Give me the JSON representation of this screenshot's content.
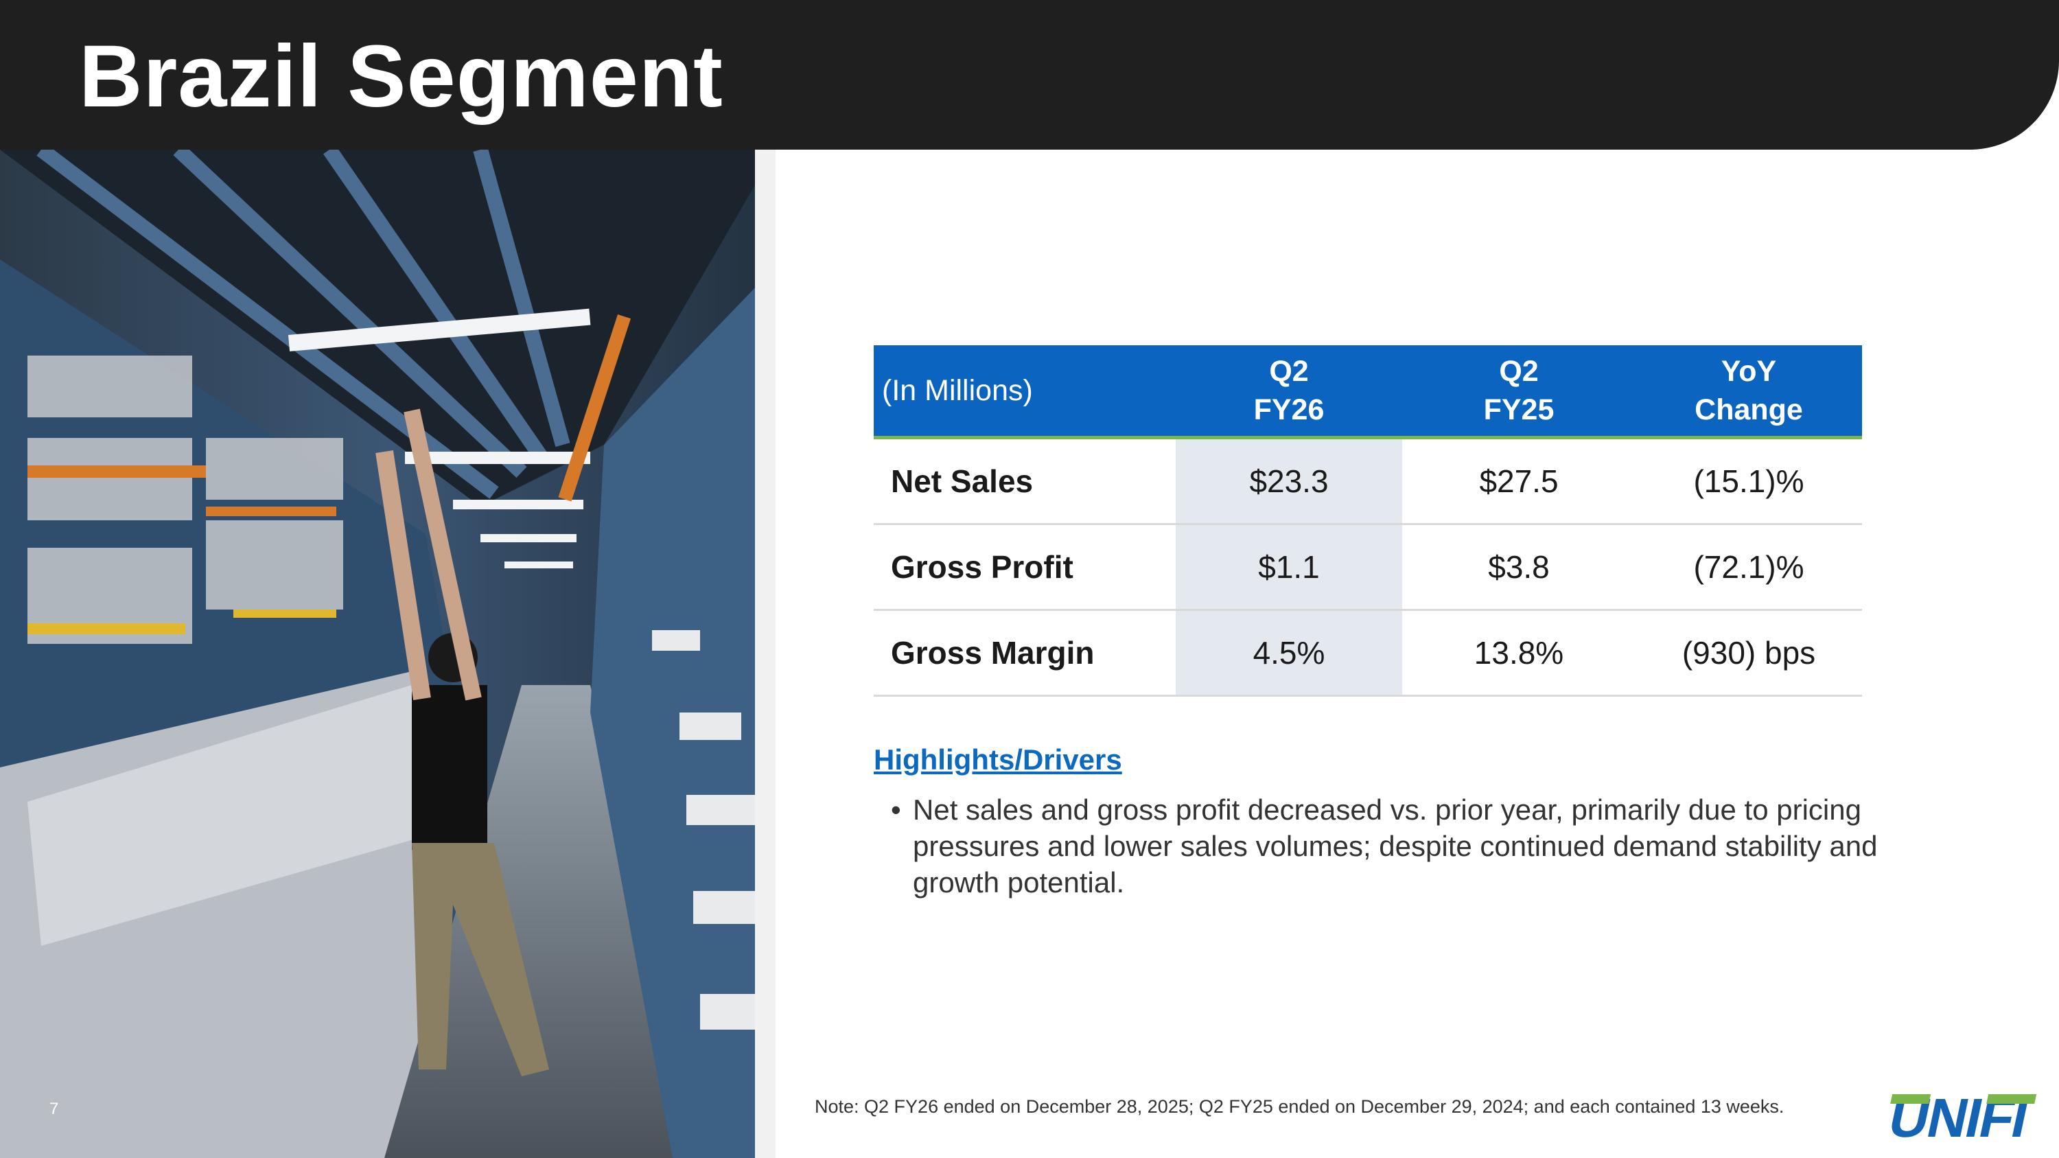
{
  "slide": {
    "title": "Brazil Segment",
    "page_number": "7"
  },
  "table": {
    "headers": {
      "unit": "(In Millions)",
      "col1": [
        "Q2",
        "FY26"
      ],
      "col2": [
        "Q2",
        "FY25"
      ],
      "col3": [
        "YoY",
        "Change"
      ]
    },
    "rows": [
      {
        "label": "Net Sales",
        "q2_fy26": "$23.3",
        "q2_fy25": "$27.5",
        "yoy": "(15.1)%"
      },
      {
        "label": "Gross Profit",
        "q2_fy26": "$1.1",
        "q2_fy25": "$3.8",
        "yoy": "(72.1)%"
      },
      {
        "label": "Gross Margin",
        "q2_fy26": "4.5%",
        "q2_fy25": "13.8%",
        "yoy": "(930) bps"
      }
    ]
  },
  "highlights": {
    "heading": "Highlights/Drivers",
    "bullets": [
      "Net sales and gross profit decreased vs. prior year, primarily due to pricing pressures and lower sales volumes; despite continued demand stability and growth potential."
    ]
  },
  "footer": {
    "note": "Note: Q2 FY26 ended on December 28, 2025; Q2 FY25 ended on December 29, 2024; and each contained 13 weeks.",
    "logo_text": "UNIFI"
  },
  "colors": {
    "header_bg": "#1f1f1f",
    "table_header_bg": "#0a64c0",
    "table_accent_line": "#7ab648",
    "highlight_column": "#e4e8ef",
    "link": "#0b6abf",
    "logo_blue": "#1564b4",
    "logo_green": "#7ab648"
  }
}
